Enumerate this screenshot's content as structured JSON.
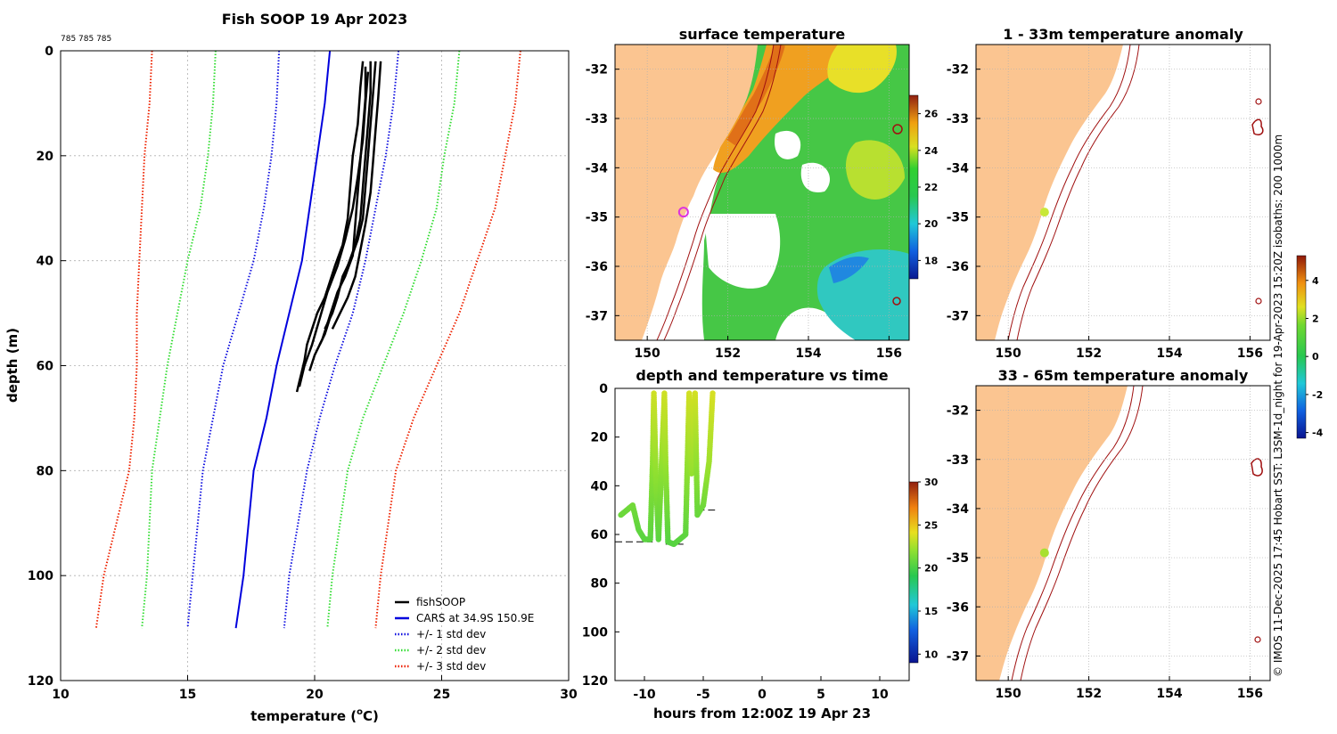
{
  "colors": {
    "fishsoop": "#000000",
    "cars": "#0000dd",
    "std1": "#1010e0",
    "std2": "#33dd33",
    "std3": "#ee2200",
    "land": "#fbc591",
    "isobath": "#a01010",
    "grid": "#b0b0b0"
  },
  "copyright": "© IMOS 11-Dec-2025 17:45 Hobart SST: L3SM-1d_night for 19-Apr-2023 15:20Z isobaths: 200  1000m",
  "chart_data": [
    {
      "id": "profile",
      "type": "line",
      "title": "Fish SOOP 19 Apr 2023",
      "header_note": "785 785 785",
      "xlabel": "temperature (°C)",
      "xlabel_main": "temperature (",
      "xlabel_sup": "o",
      "xlabel_end": "C)",
      "ylabel": "depth (m)",
      "xlim": [
        10,
        30
      ],
      "ylim": [
        0,
        120
      ],
      "y_reversed": true,
      "xticks": [
        10,
        15,
        20,
        25,
        30
      ],
      "yticks": [
        0,
        20,
        40,
        60,
        80,
        100,
        120
      ],
      "grid": true,
      "legend_position": "bottom-right",
      "series": [
        {
          "name": "fishSOOP",
          "style": "solid",
          "color_key": "fishsoop",
          "casts": [
            {
              "x": [
                21.9,
                21.8,
                21.7,
                21.5,
                21.4,
                21.3,
                21.1,
                20.8,
                20.6,
                20.4,
                20.1,
                19.9,
                19.7,
                19.6,
                19.5,
                19.4,
                19.3
              ],
              "y": [
                2,
                7,
                14,
                20,
                26,
                32,
                37,
                41,
                44,
                47,
                50,
                53,
                56,
                59,
                61,
                63,
                65
              ]
            },
            {
              "x": [
                22.0,
                22.0,
                21.9,
                21.8,
                21.7,
                21.6,
                21.5,
                21.2,
                20.9,
                20.7,
                20.5,
                20.3,
                20.0,
                19.8
              ],
              "y": [
                3,
                9,
                15,
                21,
                27,
                33,
                39,
                43,
                46,
                49,
                52,
                55,
                58,
                61
              ]
            },
            {
              "x": [
                22.2,
                22.2,
                22.1,
                22.0,
                21.9,
                21.8,
                21.6,
                21.3,
                21.0,
                20.8,
                20.6,
                20.4,
                20.2
              ],
              "y": [
                2,
                8,
                14,
                20,
                26,
                32,
                37,
                41,
                45,
                48,
                51,
                54,
                56
              ]
            },
            {
              "x": [
                22.4,
                22.3,
                22.2,
                22.1,
                22.0,
                21.9,
                21.7,
                21.4,
                21.1,
                20.9,
                20.7,
                20.4
              ],
              "y": [
                2,
                8,
                14,
                20,
                26,
                32,
                36,
                40,
                43,
                47,
                50,
                53
              ]
            },
            {
              "x": [
                22.6,
                22.5,
                22.4,
                22.3,
                22.2,
                22.0,
                21.8,
                21.6,
                21.3,
                21.0,
                20.7
              ],
              "y": [
                2,
                9,
                15,
                21,
                27,
                33,
                38,
                43,
                47,
                50,
                53
              ]
            },
            {
              "x": [
                22.1,
                22.0,
                21.9,
                21.7,
                21.5,
                21.2,
                20.9,
                20.5,
                20.2,
                19.9,
                19.6,
                19.4
              ],
              "y": [
                4,
                10,
                17,
                24,
                30,
                36,
                41,
                46,
                51,
                56,
                60,
                64
              ]
            }
          ]
        },
        {
          "name": "CARS at 34.9S 150.9E",
          "style": "solid",
          "color_key": "cars",
          "x": [
            20.6,
            20.4,
            20.1,
            19.8,
            19.5,
            19.0,
            18.5,
            18.1,
            17.6,
            17.2,
            16.9
          ],
          "y": [
            0,
            10,
            20,
            30,
            40,
            50,
            60,
            70,
            80,
            100,
            110
          ]
        },
        {
          "name": "+/- 1 std dev",
          "style": "dotted",
          "color_key": "std1",
          "pair": [
            {
              "x": [
                18.6,
                18.5,
                18.3,
                18.0,
                17.6,
                17.0,
                16.4,
                16.0,
                15.6,
                15.2,
                15.0
              ],
              "y": [
                0,
                10,
                20,
                30,
                40,
                50,
                60,
                70,
                80,
                100,
                110
              ]
            },
            {
              "x": [
                23.3,
                23.1,
                22.8,
                22.4,
                22.0,
                21.5,
                20.8,
                20.2,
                19.7,
                19.0,
                18.8
              ],
              "y": [
                0,
                10,
                20,
                30,
                40,
                50,
                60,
                70,
                80,
                100,
                110
              ]
            }
          ]
        },
        {
          "name": "+/- 2 std dev",
          "style": "dotted",
          "color_key": "std2",
          "pair": [
            {
              "x": [
                16.1,
                16.0,
                15.8,
                15.5,
                15.0,
                14.6,
                14.2,
                13.9,
                13.6,
                13.4,
                13.2
              ],
              "y": [
                0,
                10,
                20,
                30,
                40,
                50,
                60,
                70,
                80,
                100,
                110
              ]
            },
            {
              "x": [
                25.7,
                25.5,
                25.1,
                24.8,
                24.2,
                23.5,
                22.7,
                21.9,
                21.3,
                20.7,
                20.5
              ],
              "y": [
                0,
                10,
                20,
                30,
                40,
                50,
                60,
                70,
                80,
                100,
                110
              ]
            }
          ]
        },
        {
          "name": "+/- 3 std dev",
          "style": "dotted",
          "color_key": "std3",
          "pair": [
            {
              "x": [
                13.6,
                13.5,
                13.3,
                13.2,
                13.1,
                13.0,
                13.0,
                12.9,
                12.7,
                11.7,
                11.4
              ],
              "y": [
                0,
                10,
                20,
                30,
                40,
                50,
                60,
                70,
                80,
                100,
                110
              ]
            },
            {
              "x": [
                28.1,
                27.9,
                27.5,
                27.1,
                26.4,
                25.7,
                24.8,
                23.9,
                23.2,
                22.6,
                22.4
              ],
              "y": [
                0,
                10,
                20,
                30,
                40,
                50,
                60,
                70,
                80,
                100,
                110
              ]
            }
          ]
        }
      ],
      "legend": [
        "fishSOOP",
        "CARS at 34.9S 150.9E",
        "+/- 1 std dev",
        "+/- 2 std dev",
        "+/- 3 std dev"
      ]
    },
    {
      "id": "surface_map",
      "type": "heatmap",
      "title": "surface temperature",
      "xlim": [
        149.2,
        156.5
      ],
      "ylim": [
        -37.5,
        -31.5
      ],
      "xticks": [
        150,
        152,
        154,
        156
      ],
      "yticks": [
        -32,
        -33,
        -34,
        -35,
        -36,
        -37
      ],
      "colorbar": {
        "min": 17,
        "max": 27,
        "ticks": [
          18,
          20,
          22,
          24,
          26
        ]
      },
      "marker": {
        "lon": 150.9,
        "lat": -34.9,
        "color": "#dd33dd"
      }
    },
    {
      "id": "anomaly_1_33",
      "type": "heatmap",
      "title": "1 - 33m temperature anomaly",
      "xlim": [
        149.2,
        156.5
      ],
      "ylim": [
        -37.5,
        -31.5
      ],
      "xticks": [
        150,
        152,
        154,
        156
      ],
      "yticks": [
        -32,
        -33,
        -34,
        -35,
        -36,
        -37
      ],
      "marker": {
        "lon": 150.9,
        "lat": -34.9,
        "color": "#c8e838"
      }
    },
    {
      "id": "anomaly_33_65",
      "type": "heatmap",
      "title": "33 - 65m temperature anomaly",
      "xlim": [
        149.2,
        156.5
      ],
      "ylim": [
        -37.5,
        -31.5
      ],
      "xticks": [
        150,
        152,
        154,
        156
      ],
      "yticks": [
        -32,
        -33,
        -34,
        -35,
        -36,
        -37
      ],
      "marker": {
        "lon": 150.9,
        "lat": -34.9,
        "color": "#a8e030"
      }
    },
    {
      "id": "anomaly_colorbar",
      "type": "colorbar",
      "min": -4.3,
      "max": 5.3,
      "ticks": [
        -4,
        -2,
        0,
        2,
        4
      ]
    },
    {
      "id": "depth_time",
      "type": "scatter",
      "title": "depth and temperature vs time",
      "xlabel": "hours from 12:00Z 19 Apr 23",
      "xlim": [
        -12.5,
        12.5
      ],
      "ylim": [
        0,
        120
      ],
      "y_reversed": true,
      "xticks": [
        -10,
        -5,
        0,
        5,
        10
      ],
      "yticks": [
        0,
        20,
        40,
        60,
        80,
        100,
        120
      ],
      "colorbar": {
        "min": 9,
        "max": 30,
        "ticks": [
          10,
          15,
          20,
          25,
          30
        ]
      },
      "points": [
        {
          "x": -12.0,
          "y": 52,
          "t": 21.0
        },
        {
          "x": -11.5,
          "y": 50,
          "t": 21.0
        },
        {
          "x": -11.0,
          "y": 48,
          "t": 21.2
        },
        {
          "x": -10.5,
          "y": 58,
          "t": 20.7
        },
        {
          "x": -10.0,
          "y": 62,
          "t": 20.5
        },
        {
          "x": -9.5,
          "y": 62,
          "t": 20.5
        },
        {
          "x": -9.3,
          "y": 30,
          "t": 22.0
        },
        {
          "x": -9.2,
          "y": 2,
          "t": 23.5
        },
        {
          "x": -9.0,
          "y": 40,
          "t": 21.8
        },
        {
          "x": -8.8,
          "y": 62,
          "t": 20.5
        },
        {
          "x": -8.3,
          "y": 2,
          "t": 23.5
        },
        {
          "x": -8.2,
          "y": 30,
          "t": 22.3
        },
        {
          "x": -8.0,
          "y": 63,
          "t": 20.4
        },
        {
          "x": -7.5,
          "y": 64,
          "t": 20.4
        },
        {
          "x": -7.0,
          "y": 62,
          "t": 20.5
        },
        {
          "x": -6.5,
          "y": 60,
          "t": 20.6
        },
        {
          "x": -6.2,
          "y": 2,
          "t": 23.6
        },
        {
          "x": -6.0,
          "y": 35,
          "t": 22.1
        },
        {
          "x": -5.7,
          "y": 2,
          "t": 23.6
        },
        {
          "x": -5.5,
          "y": 52,
          "t": 20.9
        },
        {
          "x": -5.0,
          "y": 48,
          "t": 21.1
        },
        {
          "x": -4.5,
          "y": 30,
          "t": 22.4
        },
        {
          "x": -4.2,
          "y": 2,
          "t": 23.7
        }
      ],
      "reference_segments": [
        {
          "x0": -12.5,
          "x1": -9.3,
          "y": 63
        },
        {
          "x0": -8.2,
          "x1": -6.5,
          "y": 64
        },
        {
          "x0": -5.5,
          "x1": -4.0,
          "y": 50
        }
      ]
    }
  ]
}
